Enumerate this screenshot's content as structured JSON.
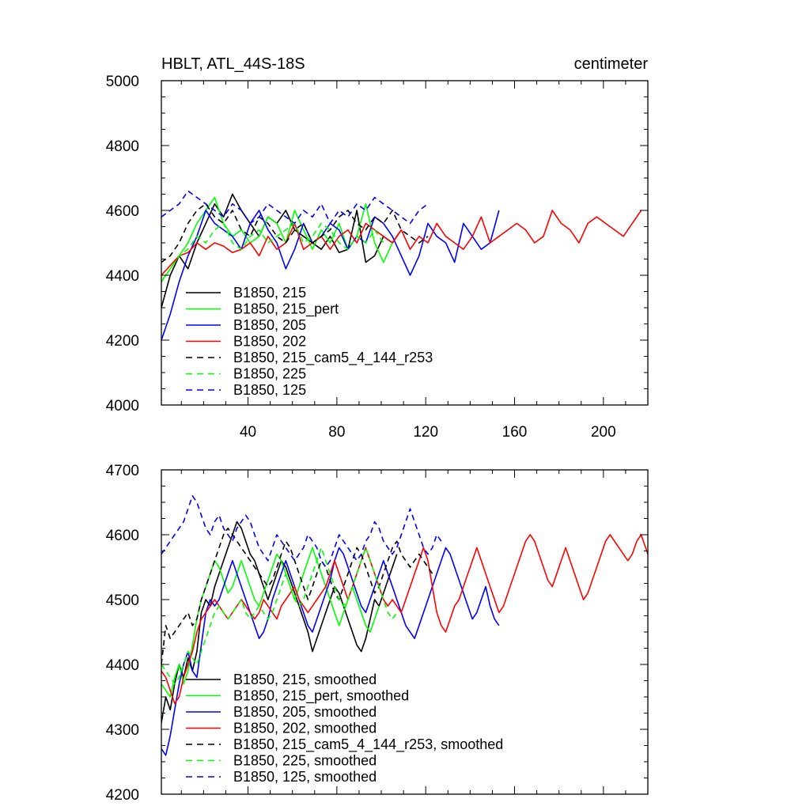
{
  "figure": {
    "title_left": "HBLT, ATL_44S-18S",
    "title_right": "centimeter"
  },
  "chart_data": [
    {
      "type": "line",
      "panel": "raw",
      "xlim": [
        1,
        220
      ],
      "ylim": [
        4000,
        5000
      ],
      "xticks": [
        40,
        80,
        120,
        160,
        200
      ],
      "yticks": [
        4000,
        4200,
        4400,
        4600,
        4800,
        5000
      ],
      "legend": "lower-left",
      "series": [
        {
          "name": "B1850, 215",
          "color": "#000000",
          "dash": false,
          "x_step": 4,
          "values": [
            4300,
            4400,
            4460,
            4420,
            4500,
            4560,
            4620,
            4580,
            4650,
            4600,
            4560,
            4520,
            4580,
            4560,
            4600,
            4540,
            4520,
            4500,
            4480,
            4520,
            4470,
            4480,
            4600,
            4440,
            4460,
            4520,
            4500,
            4540
          ]
        },
        {
          "name": "B1850, 215_pert",
          "color": "#00ff00",
          "dash": false,
          "x_step": 4,
          "values": [
            4380,
            4420,
            4460,
            4500,
            4560,
            4600,
            4640,
            4560,
            4520,
            4540,
            4500,
            4520,
            4580,
            4560,
            4500,
            4600,
            4540,
            4480,
            4540,
            4500,
            4560,
            4480,
            4520,
            4620,
            4500,
            4440,
            4500
          ]
        },
        {
          "name": "B1850, 205",
          "color": "#0000ff",
          "dash": false,
          "x_step": 4,
          "values": [
            4200,
            4280,
            4380,
            4460,
            4520,
            4600,
            4560,
            4540,
            4520,
            4480,
            4560,
            4600,
            4540,
            4500,
            4420,
            4480,
            4560,
            4500,
            4520,
            4560,
            4540,
            4480,
            4520,
            4500,
            4580,
            4560,
            4520,
            4460,
            4400,
            4460,
            4560,
            4520,
            4500,
            4440,
            4560,
            4520,
            4480,
            4500,
            4600
          ]
        },
        {
          "name": "B1850, 202",
          "color": "#ff0000",
          "dash": false,
          "x_step": 4,
          "values": [
            4400,
            4430,
            4460,
            4470,
            4500,
            4480,
            4500,
            4490,
            4470,
            4480,
            4500,
            4460,
            4520,
            4480,
            4500,
            4560,
            4480,
            4500,
            4520,
            4480,
            4520,
            4540,
            4500,
            4560,
            4540,
            4520,
            4500,
            4540,
            4480,
            4520,
            4500,
            4560,
            4520,
            4500,
            4480,
            4520,
            4580,
            4500,
            4520,
            4540,
            4560,
            4540,
            4500,
            4520,
            4600,
            4560,
            4540,
            4500,
            4560,
            4580,
            4560,
            4540,
            4520,
            4560,
            4600
          ]
        },
        {
          "name": "B1850, 215_cam5_4_144_r253",
          "color": "#000000",
          "dash": true,
          "x_step": 4,
          "values": [
            4440,
            4460,
            4500,
            4560,
            4600,
            4620,
            4580,
            4560,
            4600,
            4540,
            4520,
            4580,
            4560,
            4520,
            4500,
            4540,
            4560,
            4500,
            4520,
            4540,
            4580,
            4600,
            4560,
            4540,
            4580,
            4560,
            4600,
            4540,
            4520,
            4500,
            4520
          ]
        },
        {
          "name": "B1850, 225",
          "color": "#00ff00",
          "dash": true,
          "x_step": 4,
          "values": [
            4380,
            4420,
            4460,
            4480,
            4520,
            4500,
            4540,
            4560,
            4500,
            4480,
            4520,
            4540,
            4500,
            4520,
            4540,
            4560,
            4500,
            4520,
            4560,
            4540,
            4500,
            4480,
            4520,
            4500,
            4540,
            4500
          ]
        },
        {
          "name": "B1850, 125",
          "color": "#0000ff",
          "dash": true,
          "x_step": 4,
          "values": [
            4580,
            4600,
            4620,
            4660,
            4640,
            4620,
            4600,
            4580,
            4620,
            4600,
            4560,
            4580,
            4620,
            4600,
            4580,
            4560,
            4600,
            4580,
            4620,
            4560,
            4600,
            4580,
            4620,
            4600,
            4640,
            4620,
            4600,
            4580,
            4560,
            4600,
            4620
          ]
        }
      ]
    },
    {
      "type": "line",
      "panel": "smoothed",
      "xlim": [
        1,
        220
      ],
      "ylim": [
        4200,
        4700
      ],
      "xticks": [
        40,
        80,
        120,
        160,
        200
      ],
      "yticks": [
        4200,
        4300,
        4400,
        4500,
        4600,
        4700
      ],
      "legend": "lower-left",
      "series": [
        {
          "name": "B1850, 215, smoothed",
          "color": "#000000",
          "dash": false,
          "x_step": 2,
          "values": [
            4310,
            4350,
            4330,
            4370,
            4400,
            4380,
            4410,
            4390,
            4420,
            4480,
            4500,
            4490,
            4520,
            4540,
            4560,
            4580,
            4600,
            4620,
            4610,
            4590,
            4570,
            4560,
            4540,
            4520,
            4500,
            4520,
            4540,
            4560,
            4550,
            4530,
            4510,
            4490,
            4470,
            4450,
            4420,
            4440,
            4460,
            4480,
            4500,
            4520,
            4510,
            4490,
            4470,
            4450,
            4430,
            4420,
            4440,
            4470,
            4500,
            4490,
            4510,
            4530,
            4550,
            4570
          ]
        },
        {
          "name": "B1850, 215_pert, smoothed",
          "color": "#00ff00",
          "dash": false,
          "x_step": 2,
          "values": [
            4370,
            4360,
            4350,
            4380,
            4400,
            4370,
            4390,
            4430,
            4470,
            4500,
            4520,
            4540,
            4560,
            4550,
            4530,
            4510,
            4520,
            4540,
            4560,
            4540,
            4520,
            4500,
            4490,
            4510,
            4530,
            4550,
            4570,
            4560,
            4540,
            4520,
            4500,
            4520,
            4540,
            4560,
            4580,
            4560,
            4540,
            4520,
            4500,
            4480,
            4460,
            4480,
            4500,
            4520,
            4500,
            4480,
            4460,
            4450,
            4470,
            4490
          ]
        },
        {
          "name": "B1850, 205, smoothed",
          "color": "#0000ff",
          "dash": false,
          "x_step": 2,
          "values": [
            4270,
            4260,
            4290,
            4330,
            4370,
            4400,
            4420,
            4390,
            4380,
            4430,
            4480,
            4500,
            4490,
            4500,
            4520,
            4540,
            4560,
            4540,
            4520,
            4500,
            4480,
            4460,
            4440,
            4450,
            4470,
            4500,
            4520,
            4540,
            4560,
            4540,
            4520,
            4500,
            4480,
            4460,
            4450,
            4470,
            4490,
            4510,
            4530,
            4560,
            4580,
            4570,
            4550,
            4530,
            4510,
            4490,
            4480,
            4500,
            4520,
            4540,
            4560,
            4540,
            4520,
            4500,
            4480,
            4460,
            4450,
            4440,
            4460,
            4480,
            4500,
            4520,
            4540,
            4560,
            4580,
            4570,
            4550,
            4530,
            4510,
            4490,
            4470,
            4480,
            4500,
            4520,
            4490,
            4470,
            4460
          ]
        },
        {
          "name": "B1850, 202, smoothed",
          "color": "#ff0000",
          "dash": false,
          "x_step": 2,
          "values": [
            4390,
            4380,
            4360,
            4340,
            4350,
            4380,
            4400,
            4420,
            4450,
            4470,
            4480,
            4490,
            4500,
            4490,
            4480,
            4470,
            4480,
            4490,
            4500,
            4490,
            4480,
            4470,
            4480,
            4500,
            4490,
            4480,
            4470,
            4490,
            4500,
            4510,
            4520,
            4500,
            4490,
            4480,
            4490,
            4500,
            4510,
            4520,
            4540,
            4560,
            4540,
            4520,
            4500,
            4520,
            4540,
            4560,
            4580,
            4560,
            4540,
            4520,
            4500,
            4490,
            4500,
            4490,
            4480,
            4500,
            4520,
            4540,
            4560,
            4580,
            4560,
            4520,
            4480,
            4460,
            4450,
            4470,
            4490,
            4500,
            4520,
            4540,
            4560,
            4580,
            4560,
            4540,
            4520,
            4500,
            4480,
            4490,
            4510,
            4530,
            4550,
            4570,
            4590,
            4600,
            4590,
            4570,
            4550,
            4530,
            4520,
            4540,
            4560,
            4580,
            4560,
            4540,
            4520,
            4500,
            4510,
            4530,
            4550,
            4570,
            4590,
            4600,
            4590,
            4580,
            4570,
            4560,
            4570,
            4590,
            4600,
            4580,
            4560
          ]
        },
        {
          "name": "B1850, 215_cam5_4_144_r253, smoothed",
          "color": "#000000",
          "dash": true,
          "x_step": 2,
          "values": [
            4400,
            4460,
            4440,
            4450,
            4460,
            4470,
            4480,
            4460,
            4470,
            4500,
            4520,
            4540,
            4560,
            4580,
            4600,
            4610,
            4600,
            4590,
            4580,
            4570,
            4560,
            4550,
            4540,
            4530,
            4520,
            4530,
            4550,
            4570,
            4590,
            4580,
            4560,
            4540,
            4520,
            4500,
            4520,
            4540,
            4560,
            4550,
            4530,
            4510,
            4500,
            4520,
            4540,
            4560,
            4580,
            4570,
            4550,
            4530,
            4510,
            4520,
            4540,
            4560,
            4580,
            4590,
            4570,
            4560,
            4550,
            4560,
            4570,
            4560,
            4550,
            4540
          ]
        },
        {
          "name": "B1850, 225, smoothed",
          "color": "#00ff00",
          "dash": true,
          "x_step": 2,
          "values": [
            4400,
            4390,
            4380,
            4370,
            4380,
            4400,
            4420,
            4410,
            4400,
            4420,
            4440,
            4460,
            4480,
            4490,
            4480,
            4470,
            4480,
            4490,
            4500,
            4480,
            4470,
            4480,
            4490,
            4480,
            4470,
            4480,
            4500,
            4520,
            4540,
            4520,
            4500,
            4490,
            4500,
            4520,
            4540,
            4560,
            4580,
            4560,
            4540,
            4520,
            4500,
            4490,
            4500,
            4520,
            4540,
            4560,
            4580,
            4560,
            4540,
            4520,
            4500,
            4480,
            4470,
            4480
          ]
        },
        {
          "name": "B1850, 125, smoothed",
          "color": "#0000ff",
          "dash": true,
          "x_step": 2,
          "values": [
            4570,
            4580,
            4590,
            4600,
            4610,
            4620,
            4640,
            4660,
            4650,
            4630,
            4610,
            4600,
            4620,
            4630,
            4610,
            4600,
            4590,
            4610,
            4620,
            4630,
            4620,
            4600,
            4580,
            4570,
            4560,
            4580,
            4600,
            4590,
            4580,
            4570,
            4560,
            4570,
            4580,
            4600,
            4590,
            4580,
            4560,
            4550,
            4560,
            4580,
            4600,
            4590,
            4580,
            4570,
            4560,
            4570,
            4590,
            4600,
            4620,
            4610,
            4590,
            4580,
            4570,
            4580,
            4600,
            4620,
            4640,
            4620,
            4600,
            4580,
            4570,
            4580,
            4600,
            4590
          ]
        }
      ]
    }
  ]
}
